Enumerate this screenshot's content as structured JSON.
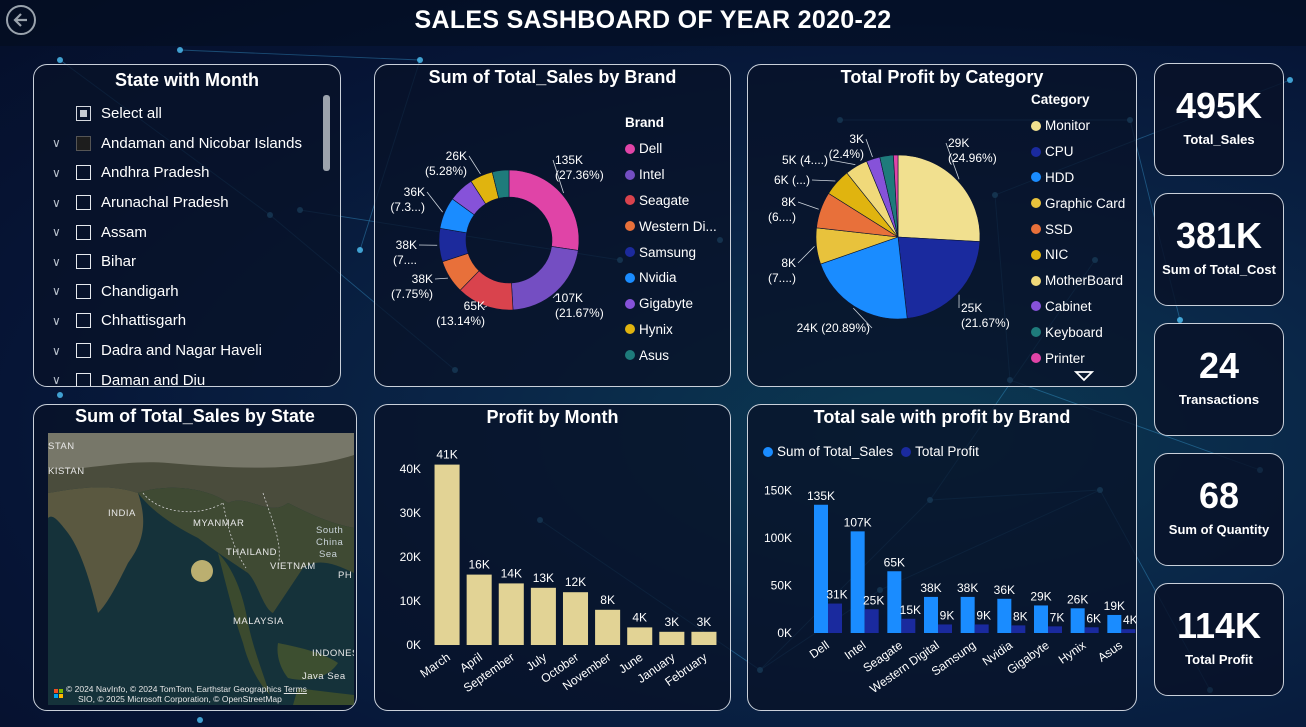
{
  "title": "SALES SASHBOARD OF YEAR 2020-22",
  "slicer": {
    "title": "State with Month",
    "items": [
      {
        "label": "Select all",
        "state": "partial",
        "expandable": false
      },
      {
        "label": "Andaman and Nicobar Islands",
        "state": "filled",
        "expandable": true
      },
      {
        "label": "Andhra Pradesh",
        "state": "empty",
        "expandable": true
      },
      {
        "label": "Arunachal Pradesh",
        "state": "empty",
        "expandable": true
      },
      {
        "label": "Assam",
        "state": "empty",
        "expandable": true
      },
      {
        "label": "Bihar",
        "state": "empty",
        "expandable": true
      },
      {
        "label": "Chandigarh",
        "state": "empty",
        "expandable": true
      },
      {
        "label": "Chhattisgarh",
        "state": "empty",
        "expandable": true
      },
      {
        "label": "Dadra and Nagar Haveli",
        "state": "empty",
        "expandable": true
      },
      {
        "label": "Daman and Diu",
        "state": "empty",
        "expandable": true
      }
    ]
  },
  "map": {
    "title": "Sum of Total_Sales by State",
    "labels": [
      "STAN",
      "KISTAN",
      "INDIA",
      "MYANMAR",
      "THAILAND",
      "VIETNAM",
      "South",
      "China",
      "Sea",
      "PH",
      "MALAYSIA",
      "INDONES",
      "Java Sea"
    ],
    "attribution_line1": "© 2024 NavInfo, © 2024 TomTom, Earthstar Geographics",
    "attribution_terms": "Terms",
    "attribution_line2": "SIO, © 2025 Microsoft Corporation, © OpenStreetMap",
    "brand": "Microsoft"
  },
  "kpis": [
    {
      "value": "495K",
      "label": "Total_Sales"
    },
    {
      "value": "381K",
      "label": "Sum of Total_Cost"
    },
    {
      "value": "24",
      "label": "Transactions"
    },
    {
      "value": "68",
      "label": "Sum of Quantity"
    },
    {
      "value": "114K",
      "label": "Total Profit"
    }
  ],
  "chart_data": [
    {
      "id": "brand_donut",
      "type": "pie",
      "title": "Sum of Total_Sales by Brand",
      "legend_title": "Brand",
      "categories": [
        "Dell",
        "Intel",
        "Seagate",
        "Western Di...",
        "Samsung",
        "Nvidia",
        "Gigabyte",
        "Hynix",
        "Asus"
      ],
      "values": [
        135,
        107,
        65,
        38,
        38,
        36,
        29,
        26,
        19
      ],
      "colors": [
        "#e044a7",
        "#744ec2",
        "#d9434d",
        "#e8703a",
        "#1c2a9c",
        "#1a8cff",
        "#8652d9",
        "#e0b40f",
        "#1e7b7b"
      ],
      "data_labels": [
        {
          "value": "135K",
          "pct": "(27.36%)"
        },
        {
          "value": "107K",
          "pct": "(21.67%)"
        },
        {
          "value": "65K",
          "pct": "(13.14%)"
        },
        {
          "value": "38K",
          "pct": "(7.75%)"
        },
        {
          "value": "38K",
          "pct": "(7...."
        },
        {
          "value": "36K",
          "pct": "(7.3...)"
        },
        {
          "value": "",
          "pct": ""
        },
        {
          "value": "26K",
          "pct": "(5.28%)"
        },
        {
          "value": "",
          "pct": ""
        }
      ]
    },
    {
      "id": "category_pie",
      "type": "pie",
      "title": "Total Profit by Category",
      "legend_title": "Category",
      "categories": [
        "Monitor",
        "CPU",
        "HDD",
        "Graphic Card",
        "SSD",
        "NIC",
        "MotherBoard",
        "Cabinet",
        "Keyboard",
        "Printer"
      ],
      "values": [
        29,
        25,
        24,
        8,
        8,
        6,
        5,
        3,
        3,
        1
      ],
      "colors": [
        "#f1e08f",
        "#1a2a9e",
        "#1a8cff",
        "#e8c23c",
        "#e8703a",
        "#e0b40f",
        "#f0d97a",
        "#8652d9",
        "#1e7b7b",
        "#e044a7"
      ],
      "data_labels": [
        {
          "value": "29K",
          "pct": "(24.96%)"
        },
        {
          "value": "25K",
          "pct": "(21.67%)"
        },
        {
          "value": "24K (20.89%)",
          "pct": ""
        },
        {
          "value": "8K",
          "pct": "(7....)"
        },
        {
          "value": "8K",
          "pct": "(6....)"
        },
        {
          "value": "6K (...)",
          "pct": ""
        },
        {
          "value": "5K (4....)",
          "pct": ""
        },
        {
          "value": "3K",
          "pct": "(2.4%)"
        },
        {
          "value": "",
          "pct": ""
        },
        {
          "value": "",
          "pct": ""
        }
      ]
    },
    {
      "id": "profit_month",
      "type": "bar",
      "title": "Profit by Month",
      "categories": [
        "March",
        "April",
        "September",
        "July",
        "October",
        "November",
        "June",
        "January",
        "February"
      ],
      "values": [
        41,
        16,
        14,
        13,
        12,
        8,
        4,
        3,
        3
      ],
      "data_labels": [
        "41K",
        "16K",
        "14K",
        "13K",
        "12K",
        "8K",
        "4K",
        "3K",
        "3K"
      ],
      "ylim": [
        0,
        45
      ],
      "yticks": [
        {
          "v": 0,
          "label": "0K"
        },
        {
          "v": 10,
          "label": "10K"
        },
        {
          "v": 20,
          "label": "20K"
        },
        {
          "v": 30,
          "label": "30K"
        },
        {
          "v": 40,
          "label": "40K"
        }
      ],
      "color": "#e2d395"
    },
    {
      "id": "sales_profit_brand",
      "type": "bar",
      "title": "Total sale with profit by Brand",
      "categories": [
        "Dell",
        "Intel",
        "Seagate",
        "Western Digital",
        "Samsung",
        "Nvidia",
        "Gigabyte",
        "Hynix",
        "Asus"
      ],
      "series": [
        {
          "name": "Sum of Total_Sales",
          "color": "#1a8cff",
          "values": [
            135,
            107,
            65,
            38,
            38,
            36,
            29,
            26,
            19
          ],
          "labels": [
            "135K",
            "107K",
            "65K",
            "38K",
            "38K",
            "36K",
            "29K",
            "26K",
            "19K"
          ]
        },
        {
          "name": "Total Profit",
          "color": "#1a2a9e",
          "values": [
            31,
            25,
            15,
            9,
            9,
            8,
            7,
            6,
            4
          ],
          "labels": [
            "31K",
            "25K",
            "15K",
            "9K",
            "9K",
            "8K",
            "7K",
            "6K",
            "4K"
          ]
        }
      ],
      "ylim": [
        0,
        160
      ],
      "yticks": [
        {
          "v": 0,
          "label": "0K"
        },
        {
          "v": 50,
          "label": "50K"
        },
        {
          "v": 100,
          "label": "100K"
        },
        {
          "v": 150,
          "label": "150K"
        }
      ]
    }
  ]
}
